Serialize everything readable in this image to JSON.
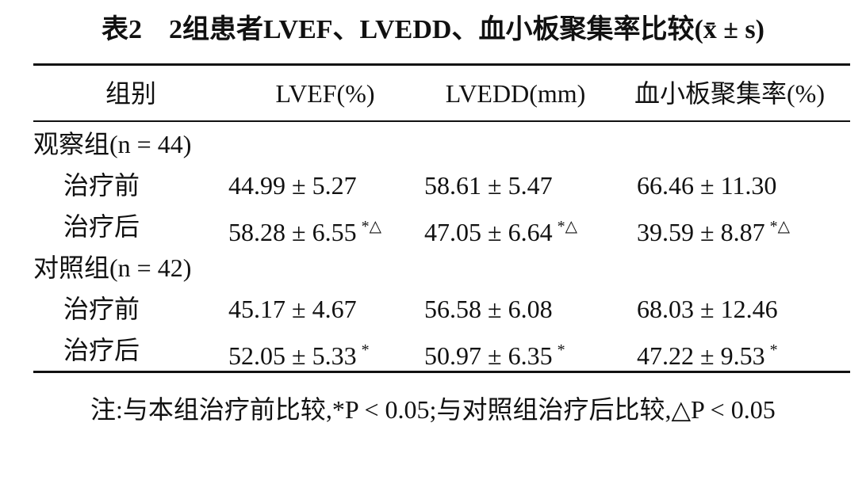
{
  "title": "表2　2组患者LVEF、LVEDD、血小板聚集率比较(x̄ ± s)",
  "table": {
    "headers": [
      "组别",
      "LVEF(%)",
      "LVEDD(mm)",
      "血小板聚集率(%)"
    ],
    "groups": [
      {
        "label": "观察组(n = 44)",
        "rows": [
          {
            "label": "治疗前",
            "cells": [
              {
                "text": "44.99 ± 5.27"
              },
              {
                "text": "58.61 ± 5.47"
              },
              {
                "text": "66.46 ± 11.30"
              }
            ]
          },
          {
            "label": "治疗后",
            "cells": [
              {
                "text": "58.28 ± 6.55",
                "sup": "*△"
              },
              {
                "text": "47.05 ± 6.64",
                "sup": "*△"
              },
              {
                "text": "39.59 ± 8.87",
                "sup": "*△"
              }
            ]
          }
        ]
      },
      {
        "label": "对照组(n = 42)",
        "rows": [
          {
            "label": "治疗前",
            "cells": [
              {
                "text": "45.17 ± 4.67"
              },
              {
                "text": "56.58 ± 6.08"
              },
              {
                "text": "68.03 ± 12.46"
              }
            ]
          },
          {
            "label": "治疗后",
            "cells": [
              {
                "text": "52.05 ± 5.33",
                "sup": "*"
              },
              {
                "text": "50.97 ± 6.35",
                "sup": "*"
              },
              {
                "text": "47.22 ± 9.53",
                "sup": "*"
              }
            ]
          }
        ]
      }
    ]
  },
  "note": "注:与本组治疗前比较,*P < 0.05;与对照组治疗后比较,△P < 0.05"
}
